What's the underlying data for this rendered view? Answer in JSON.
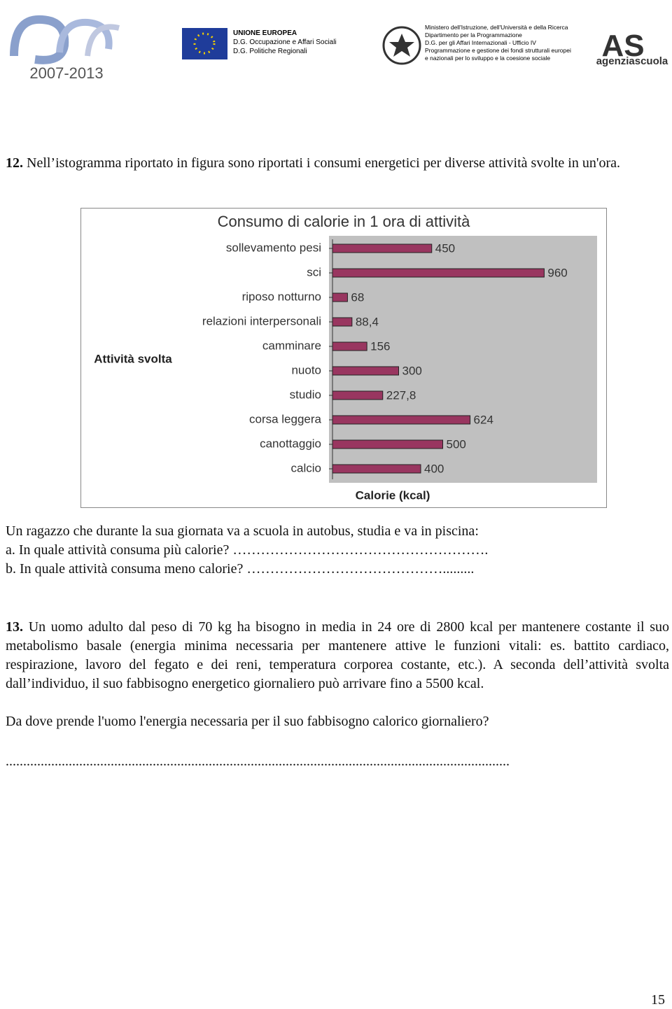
{
  "header": {
    "logos": [
      "2007-2013",
      "UNIONE EUROPEA",
      "D.G. Occupazione e Affari Sociali",
      "D.G. Politiche Regionali",
      "Ministero dell'Istruzione, dell'Università e della Ricerca",
      "Dipartimento per la Programmazione",
      "D.G. per gli Affari Internazionali - Ufficio IV",
      "Programmazione e gestione dei fondi strutturali europei",
      "e nazionali per lo sviluppo e la coesione sociale",
      "AS",
      "agenziascuola"
    ]
  },
  "question_12": {
    "number": "12.",
    "text": "Nell’istogramma riportato in figura sono riportati i consumi energetici per diverse attività svolte in un'ora.",
    "intro": "Un ragazzo che durante la sua giornata va a scuola in autobus, studia e va in piscina:",
    "items": [
      "a. In quale attività  consuma più calorie? ……………………………………………….",
      "b. In quale attività consuma meno calorie? ……………………………………........."
    ]
  },
  "chart_data": {
    "type": "bar",
    "orientation": "horizontal",
    "title": "Consumo di calorie in 1 ora di attività",
    "y_label": "Attività svolta",
    "x_label": "Calorie (kcal)",
    "categories": [
      "sollevamento pesi",
      "sci",
      "riposo notturno",
      "relazioni interpersonali",
      "camminare",
      "nuoto",
      "studio",
      "corsa leggera",
      "canottaggio",
      "calcio"
    ],
    "values": [
      450,
      960,
      68,
      88.4,
      156,
      300,
      227.8,
      624,
      500,
      400
    ],
    "value_labels": [
      "450",
      "960",
      "68",
      "88,4",
      "156",
      "300",
      "227,8",
      "624",
      "500",
      "400"
    ],
    "color": "#993660",
    "background": "#c0c0c0",
    "xlim": [
      0,
      1200
    ]
  },
  "question_13": {
    "number": "13.",
    "paragraphs": [
      "Un uomo adulto dal peso di 70 kg ha bisogno in media in 24 ore di 2800 kcal per mantenere costante il suo metabolismo basale (energia minima necessaria per mantenere attive le funzioni vitali: es. battito cardiaco, respirazione, lavoro del fegato e dei reni, temperatura corporea costante, etc.). A seconda dell’attività svolta dall’individuo, il suo fabbisogno energetico giornaliero può arrivare fino a 5500 kcal.",
      "Da dove prende l'uomo l'energia necessaria per il suo fabbisogno calorico giornaliero?"
    ],
    "answer_line": "................................................................................................................................................"
  },
  "page_number": "15"
}
